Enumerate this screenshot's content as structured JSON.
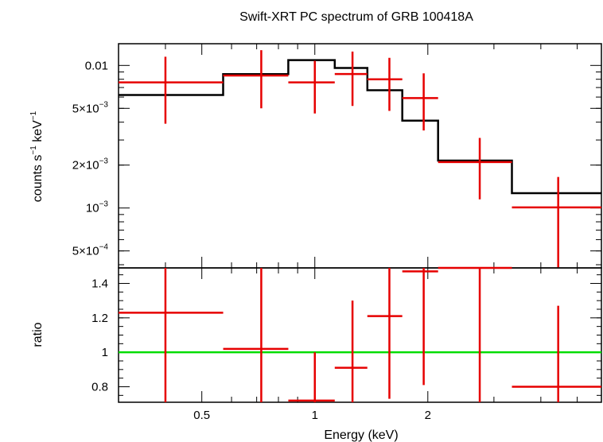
{
  "chart_data": [
    {
      "type": "line",
      "panel": "spectrum",
      "title": "Swift-XRT PC spectrum of GRB 100418A",
      "ylabel_parts": {
        "main": "counts s",
        "sup1": "−1",
        "mid": " keV",
        "sup2": "−1"
      },
      "xlabel": "",
      "yscale": "log",
      "xscale": "log",
      "xlim": [
        0.3,
        5.8
      ],
      "ylim": [
        0.00038,
        0.0142
      ],
      "yticks": [
        {
          "value": 0.01,
          "label": "0.01"
        },
        {
          "value": 0.005,
          "label": "5×10",
          "exp": "−3"
        },
        {
          "value": 0.002,
          "label": "2×10",
          "exp": "−3"
        },
        {
          "value": 0.001,
          "label": "10",
          "exp": "−3"
        },
        {
          "value": 0.0005,
          "label": "5×10",
          "exp": "−4"
        }
      ],
      "series": [
        {
          "role": "data",
          "color": "#e60000",
          "points": [
            {
              "xlo": 0.3,
              "xhi": 0.57,
              "x": 0.4,
              "y": 0.0076,
              "ylo": 0.0039,
              "yhi": 0.0115
            },
            {
              "xlo": 0.57,
              "xhi": 0.85,
              "x": 0.72,
              "y": 0.0085,
              "ylo": 0.005,
              "yhi": 0.0128
            },
            {
              "xlo": 0.85,
              "xhi": 1.13,
              "x": 1.0,
              "y": 0.0076,
              "ylo": 0.0046,
              "yhi": 0.0108
            },
            {
              "xlo": 1.13,
              "xhi": 1.38,
              "x": 1.26,
              "y": 0.0087,
              "ylo": 0.0052,
              "yhi": 0.0125
            },
            {
              "xlo": 1.38,
              "xhi": 1.71,
              "x": 1.58,
              "y": 0.008,
              "ylo": 0.0048,
              "yhi": 0.0113
            },
            {
              "xlo": 1.71,
              "xhi": 2.13,
              "x": 1.95,
              "y": 0.0059,
              "ylo": 0.0035,
              "yhi": 0.0088
            },
            {
              "xlo": 2.13,
              "xhi": 3.35,
              "x": 2.75,
              "y": 0.0021,
              "ylo": 0.00115,
              "yhi": 0.0031
            },
            {
              "xlo": 3.35,
              "xhi": 5.8,
              "x": 4.45,
              "y": 0.00101,
              "ylo": 0.00038,
              "yhi": 0.00165
            }
          ]
        },
        {
          "role": "model",
          "color": "#000000",
          "steps": [
            {
              "xlo": 0.3,
              "xhi": 0.57,
              "y": 0.0062
            },
            {
              "xlo": 0.57,
              "xhi": 0.85,
              "y": 0.0087
            },
            {
              "xlo": 0.85,
              "xhi": 1.13,
              "y": 0.0109
            },
            {
              "xlo": 1.13,
              "xhi": 1.38,
              "y": 0.0096
            },
            {
              "xlo": 1.38,
              "xhi": 1.71,
              "y": 0.0067
            },
            {
              "xlo": 1.71,
              "xhi": 2.13,
              "y": 0.0041
            },
            {
              "xlo": 2.13,
              "xhi": 3.35,
              "y": 0.00215
            },
            {
              "xlo": 3.35,
              "xhi": 5.8,
              "y": 0.00127
            }
          ]
        }
      ]
    },
    {
      "type": "scatter",
      "panel": "ratio",
      "ylabel": "ratio",
      "xlabel": "Energy (keV)",
      "xscale": "log",
      "xlim": [
        0.3,
        5.8
      ],
      "ylim": [
        0.71,
        1.49
      ],
      "yticks": [
        {
          "value": 0.8,
          "label": "0.8"
        },
        {
          "value": 1.0,
          "label": "1"
        },
        {
          "value": 1.2,
          "label": "1.2"
        },
        {
          "value": 1.4,
          "label": "1.4"
        }
      ],
      "xticks": [
        {
          "value": 0.5,
          "label": "0.5"
        },
        {
          "value": 1,
          "label": "1"
        },
        {
          "value": 2,
          "label": "2"
        }
      ],
      "reference_line": {
        "y": 1.0,
        "color": "#00dd00"
      },
      "series": [
        {
          "role": "ratio",
          "color": "#e60000",
          "points": [
            {
              "xlo": 0.3,
              "xhi": 0.57,
              "x": 0.4,
              "y": 1.23,
              "ylo": 0.71,
              "yhi": 1.49
            },
            {
              "xlo": 0.57,
              "xhi": 0.85,
              "x": 0.72,
              "y": 1.02,
              "ylo": 0.71,
              "yhi": 1.49
            },
            {
              "xlo": 0.85,
              "xhi": 1.13,
              "x": 1.0,
              "y": 0.72,
              "ylo": 0.71,
              "yhi": 1.0
            },
            {
              "xlo": 1.13,
              "xhi": 1.38,
              "x": 1.26,
              "y": 0.91,
              "ylo": 0.71,
              "yhi": 1.3
            },
            {
              "xlo": 1.38,
              "xhi": 1.71,
              "x": 1.58,
              "y": 1.21,
              "ylo": 0.73,
              "yhi": 1.49
            },
            {
              "xlo": 1.71,
              "xhi": 2.13,
              "x": 1.95,
              "y": 1.47,
              "ylo": 0.81,
              "yhi": 1.49
            },
            {
              "xlo": 2.13,
              "xhi": 3.35,
              "x": 2.75,
              "y": 1.49,
              "ylo": 0.71,
              "yhi": 1.49
            },
            {
              "xlo": 3.35,
              "xhi": 5.8,
              "x": 4.45,
              "y": 0.8,
              "ylo": 0.71,
              "yhi": 1.27
            }
          ]
        }
      ]
    }
  ]
}
